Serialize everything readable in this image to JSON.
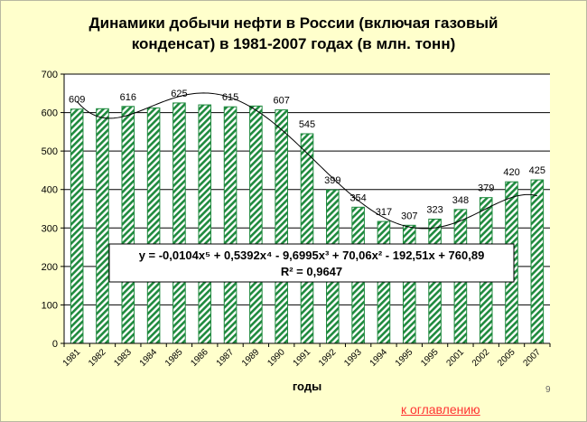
{
  "chart_data": {
    "type": "bar",
    "title_line1": "Динамики добычи нефти в России (включая газовый",
    "title_line2": "конденсат) в 1981-2007 годах (в млн. тонн)",
    "xlabel": "годы",
    "ylabel": "",
    "ylim": [
      0,
      700
    ],
    "yticks": [
      "0",
      "100",
      "200",
      "300",
      "400",
      "500",
      "600",
      "700"
    ],
    "grid": true,
    "categories": [
      "1981",
      "1982",
      "1983",
      "1984",
      "1985",
      "1986",
      "1987",
      "1989",
      "1990",
      "1991",
      "1992",
      "1993",
      "1994",
      "1995",
      "1995",
      "2001",
      "2002",
      "2005",
      "2007"
    ],
    "values": [
      609,
      610,
      616,
      612,
      625,
      620,
      615,
      617,
      607,
      545,
      399,
      354,
      317,
      307,
      323,
      348,
      379,
      420,
      425
    ],
    "value_labels": [
      "609",
      "",
      "616",
      "",
      "625",
      "",
      "615",
      "",
      "607",
      "545",
      "399",
      "354",
      "317",
      "307",
      "323",
      "348",
      "379",
      "420",
      "425"
    ],
    "bar_color": "#1f8a3e",
    "trendline": {
      "type": "polynomial",
      "degree": 5,
      "coefficients": [
        -0.0104,
        0.5392,
        -9.6995,
        70.06,
        -192.51,
        760.89
      ],
      "equation_text": "y = -0,0104x⁵ + 0,5392x⁴ - 9,6995x³ + 70,06x² - 192,51x + 760,89",
      "r2_text": "R² = 0,9647"
    }
  },
  "footer": {
    "toc_link": "к оглавлению",
    "page_number": "9"
  }
}
